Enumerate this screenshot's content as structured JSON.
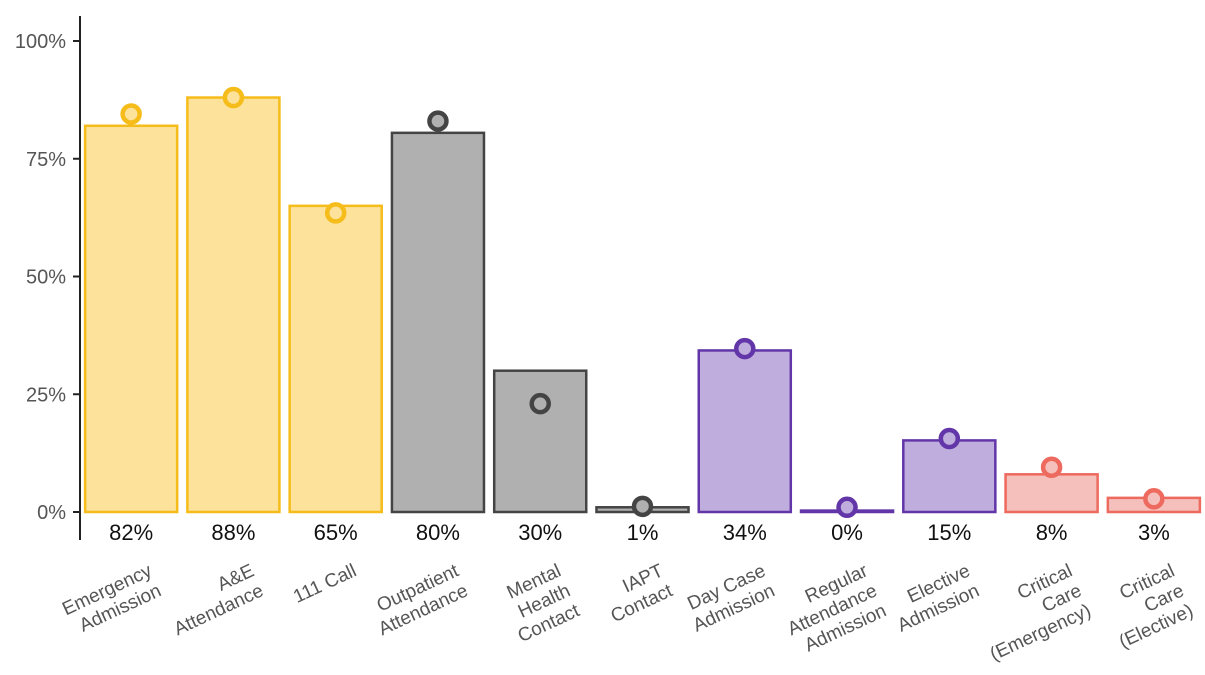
{
  "chart_data": {
    "type": "bar",
    "title": "",
    "xlabel": "",
    "ylabel": "",
    "ylim": [
      0,
      100
    ],
    "y_ticks": [
      "0%",
      "25%",
      "50%",
      "75%",
      "100%"
    ],
    "grid": false,
    "legend": "none",
    "categories": [
      {
        "lines": [
          "Emergency",
          "Admission"
        ],
        "value": 82,
        "point": 84.5,
        "label": "82%",
        "group": "yellow"
      },
      {
        "lines": [
          "A&E",
          "Attendance"
        ],
        "value": 88,
        "point": 88,
        "label": "88%",
        "group": "yellow"
      },
      {
        "lines": [
          "111 Call"
        ],
        "value": 65,
        "point": 63.5,
        "label": "65%",
        "group": "yellow"
      },
      {
        "lines": [
          "Outpatient",
          "Attendance"
        ],
        "value": 80.5,
        "point": 83,
        "label": "80%",
        "group": "grey"
      },
      {
        "lines": [
          "Mental",
          "Health",
          "Contact"
        ],
        "value": 30,
        "point": 23,
        "label": "30%",
        "group": "grey"
      },
      {
        "lines": [
          "IAPT",
          "Contact"
        ],
        "value": 1,
        "point": 1.2,
        "label": "1%",
        "group": "grey"
      },
      {
        "lines": [
          "Day Case",
          "Admission"
        ],
        "value": 34.3,
        "point": 34.7,
        "label": "34%",
        "group": "purple"
      },
      {
        "lines": [
          "Regular",
          "Attendance",
          "Admission"
        ],
        "value": 0.3,
        "point": 1,
        "label": "0%",
        "group": "purple"
      },
      {
        "lines": [
          "Elective",
          "Admission"
        ],
        "value": 15.2,
        "point": 15.6,
        "label": "15%",
        "group": "purple"
      },
      {
        "lines": [
          "Critical",
          "Care",
          "(Emergency)"
        ],
        "value": 8,
        "point": 9.5,
        "label": "8%",
        "group": "red"
      },
      {
        "lines": [
          "Critical",
          "Care",
          "(Elective)"
        ],
        "value": 3,
        "point": 2.8,
        "label": "3%",
        "group": "red"
      }
    ],
    "colors": {
      "yellow": {
        "fill": "#fce29a",
        "stroke": "#f5bc1a"
      },
      "grey": {
        "fill": "#b0b0b0",
        "stroke": "#444444"
      },
      "purple": {
        "fill": "#bfaedd",
        "stroke": "#6236a8"
      },
      "red": {
        "fill": "#f5c0bc",
        "stroke": "#ee6a5e"
      }
    }
  }
}
